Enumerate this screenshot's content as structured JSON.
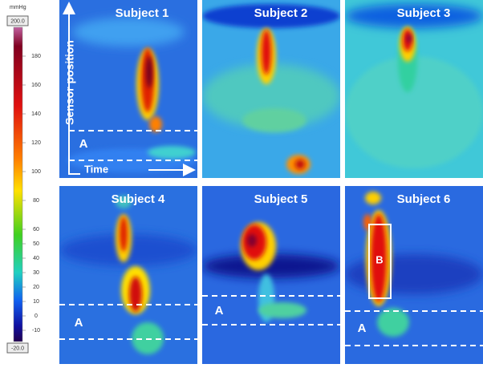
{
  "colorbar": {
    "unit": "mmHg",
    "max_label": "200.0",
    "min_label": "-20.0",
    "ticks": [
      180,
      160,
      140,
      120,
      100,
      80,
      60,
      50,
      40,
      30,
      20,
      10,
      0,
      -10
    ]
  },
  "annotations": {
    "sensor_position": "Sensor position",
    "time": "Time"
  },
  "panels": [
    {
      "title": "Subject 1",
      "region_label": "A"
    },
    {
      "title": "Subject 2"
    },
    {
      "title": "Subject 3"
    },
    {
      "title": "Subject 4",
      "region_label": "A"
    },
    {
      "title": "Subject 5",
      "region_label": "A"
    },
    {
      "title": "Subject 6",
      "region_label": "A",
      "box_label": "B"
    }
  ]
}
